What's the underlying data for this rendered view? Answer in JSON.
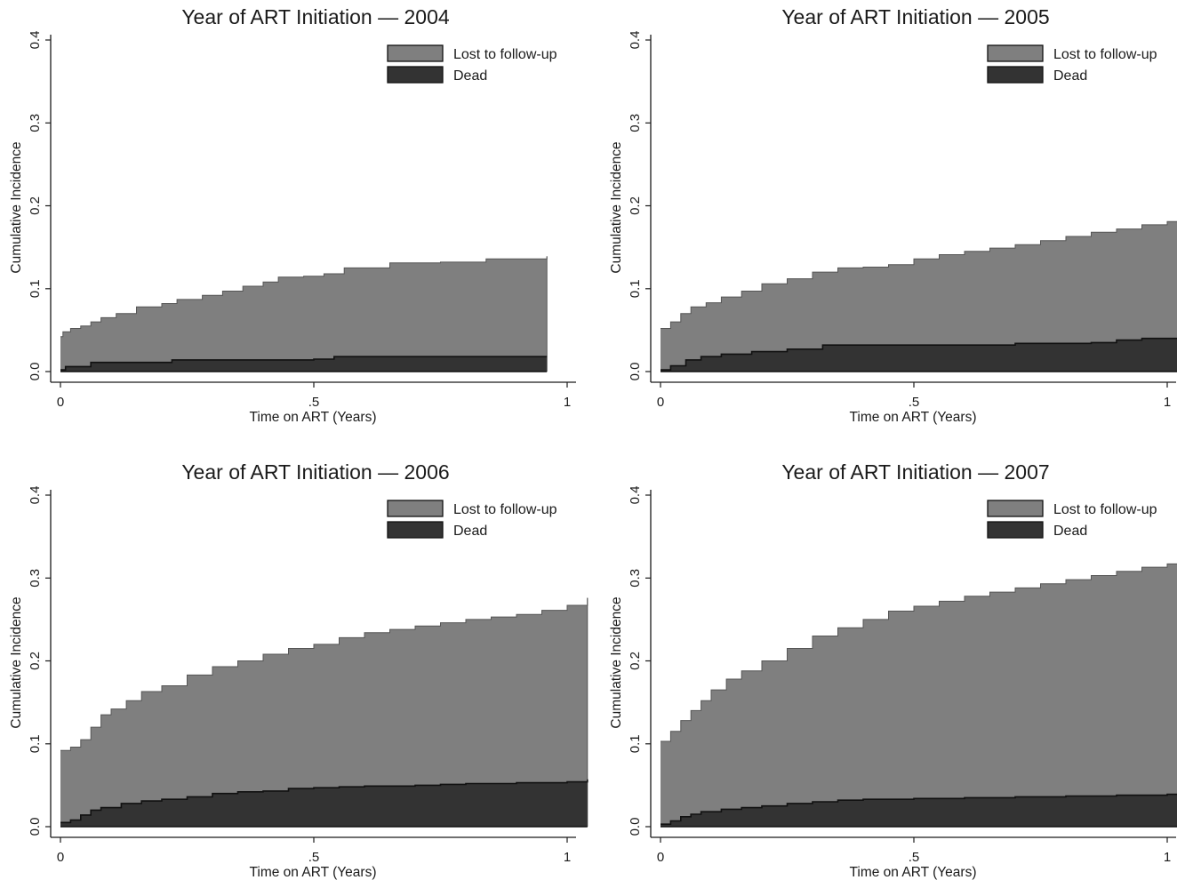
{
  "colors": {
    "ltfu": "#7f7f7f",
    "dead": "#333333",
    "outline": "#111111"
  },
  "chart_data": [
    {
      "type": "area",
      "title": "Year of ART Initiation — 2004",
      "xlabel": "Time on ART (Years)",
      "ylabel": "Cumulative Incidence",
      "xlim": [
        0,
        1
      ],
      "ylim": [
        0,
        0.4
      ],
      "xticks": [
        {
          "v": 0,
          "label": "0"
        },
        {
          "v": 0.5,
          "label": ".5"
        },
        {
          "v": 1,
          "label": "1"
        }
      ],
      "yticks": [
        {
          "v": 0,
          "label": "0.0"
        },
        {
          "v": 0.1,
          "label": "0.1"
        },
        {
          "v": 0.2,
          "label": "0.2"
        },
        {
          "v": 0.3,
          "label": "0.3"
        },
        {
          "v": 0.4,
          "label": "0.4"
        }
      ],
      "legend": [
        {
          "name": "Lost to follow-up",
          "color": "#7f7f7f"
        },
        {
          "name": "Dead",
          "color": "#333333"
        }
      ],
      "legend_position": "top-right",
      "series": [
        {
          "name": "Lost to follow-up",
          "stacked_total": true,
          "x": [
            0,
            0.005,
            0.02,
            0.04,
            0.06,
            0.08,
            0.11,
            0.15,
            0.2,
            0.23,
            0.28,
            0.32,
            0.36,
            0.4,
            0.43,
            0.48,
            0.52,
            0.56,
            0.65,
            0.75,
            0.84,
            0.96
          ],
          "y": [
            0.042,
            0.048,
            0.052,
            0.055,
            0.06,
            0.065,
            0.07,
            0.078,
            0.082,
            0.087,
            0.092,
            0.097,
            0.103,
            0.108,
            0.114,
            0.115,
            0.118,
            0.125,
            0.131,
            0.132,
            0.136,
            0.139
          ]
        },
        {
          "name": "Dead",
          "x": [
            0,
            0.01,
            0.06,
            0.22,
            0.5,
            0.54,
            0.96
          ],
          "y": [
            0.002,
            0.006,
            0.011,
            0.014,
            0.015,
            0.018,
            0.018
          ]
        }
      ]
    },
    {
      "type": "area",
      "title": "Year of ART Initiation — 2005",
      "xlabel": "Time on ART (Years)",
      "ylabel": "Cumulative Incidence",
      "xlim": [
        0,
        1.04
      ],
      "ylim": [
        0,
        0.4
      ],
      "xticks": [
        {
          "v": 0,
          "label": "0"
        },
        {
          "v": 0.5,
          "label": ".5"
        },
        {
          "v": 1,
          "label": "1"
        }
      ],
      "yticks": [
        {
          "v": 0,
          "label": "0.0"
        },
        {
          "v": 0.1,
          "label": "0.1"
        },
        {
          "v": 0.2,
          "label": "0.2"
        },
        {
          "v": 0.3,
          "label": "0.3"
        },
        {
          "v": 0.4,
          "label": "0.4"
        }
      ],
      "legend": [
        {
          "name": "Lost to follow-up",
          "color": "#7f7f7f"
        },
        {
          "name": "Dead",
          "color": "#333333"
        }
      ],
      "legend_position": "top-right",
      "series": [
        {
          "name": "Lost to follow-up",
          "stacked_total": true,
          "x": [
            0,
            0.02,
            0.04,
            0.06,
            0.09,
            0.12,
            0.16,
            0.2,
            0.25,
            0.3,
            0.35,
            0.4,
            0.45,
            0.5,
            0.55,
            0.6,
            0.65,
            0.7,
            0.75,
            0.8,
            0.85,
            0.9,
            0.95,
            1.0,
            1.04
          ],
          "y": [
            0.052,
            0.06,
            0.07,
            0.078,
            0.083,
            0.09,
            0.097,
            0.106,
            0.112,
            0.12,
            0.125,
            0.126,
            0.129,
            0.136,
            0.141,
            0.145,
            0.149,
            0.153,
            0.158,
            0.163,
            0.168,
            0.172,
            0.177,
            0.181,
            0.184
          ]
        },
        {
          "name": "Dead",
          "x": [
            0,
            0.02,
            0.05,
            0.08,
            0.12,
            0.18,
            0.25,
            0.32,
            0.5,
            0.7,
            0.75,
            0.85,
            0.9,
            0.95,
            1.04
          ],
          "y": [
            0.002,
            0.007,
            0.014,
            0.018,
            0.021,
            0.024,
            0.027,
            0.032,
            0.032,
            0.034,
            0.034,
            0.035,
            0.038,
            0.04,
            0.041
          ]
        }
      ]
    },
    {
      "type": "area",
      "title": "Year of ART Initiation — 2006",
      "xlabel": "Time on ART (Years)",
      "ylabel": "Cumulative Incidence",
      "xlim": [
        0,
        1.04
      ],
      "ylim": [
        0,
        0.4
      ],
      "xticks": [
        {
          "v": 0,
          "label": "0"
        },
        {
          "v": 0.5,
          "label": ".5"
        },
        {
          "v": 1,
          "label": "1"
        }
      ],
      "yticks": [
        {
          "v": 0,
          "label": "0.0"
        },
        {
          "v": 0.1,
          "label": "0.1"
        },
        {
          "v": 0.2,
          "label": "0.2"
        },
        {
          "v": 0.3,
          "label": "0.3"
        },
        {
          "v": 0.4,
          "label": "0.4"
        }
      ],
      "legend": [
        {
          "name": "Lost to follow-up",
          "color": "#7f7f7f"
        },
        {
          "name": "Dead",
          "color": "#333333"
        }
      ],
      "legend_position": "top-right",
      "series": [
        {
          "name": "Lost to follow-up",
          "stacked_total": true,
          "x": [
            0,
            0.02,
            0.04,
            0.06,
            0.08,
            0.1,
            0.13,
            0.16,
            0.2,
            0.25,
            0.3,
            0.35,
            0.4,
            0.45,
            0.5,
            0.55,
            0.6,
            0.65,
            0.7,
            0.75,
            0.8,
            0.85,
            0.9,
            0.95,
            1.0,
            1.04
          ],
          "y": [
            0.092,
            0.096,
            0.105,
            0.12,
            0.135,
            0.142,
            0.152,
            0.163,
            0.17,
            0.183,
            0.193,
            0.2,
            0.208,
            0.215,
            0.22,
            0.228,
            0.234,
            0.238,
            0.242,
            0.246,
            0.25,
            0.253,
            0.256,
            0.261,
            0.267,
            0.276
          ]
        },
        {
          "name": "Dead",
          "x": [
            0,
            0.02,
            0.04,
            0.06,
            0.08,
            0.12,
            0.16,
            0.2,
            0.25,
            0.3,
            0.35,
            0.4,
            0.45,
            0.5,
            0.55,
            0.6,
            0.7,
            0.75,
            0.8,
            0.9,
            1.0,
            1.04
          ],
          "y": [
            0.005,
            0.008,
            0.014,
            0.02,
            0.023,
            0.028,
            0.031,
            0.033,
            0.036,
            0.04,
            0.042,
            0.043,
            0.046,
            0.047,
            0.048,
            0.049,
            0.05,
            0.051,
            0.052,
            0.053,
            0.054,
            0.057
          ]
        }
      ]
    },
    {
      "type": "area",
      "title": "Year of ART Initiation — 2007",
      "xlabel": "Time on ART (Years)",
      "ylabel": "Cumulative Incidence",
      "xlim": [
        0,
        1.04
      ],
      "ylim": [
        0,
        0.4
      ],
      "xticks": [
        {
          "v": 0,
          "label": "0"
        },
        {
          "v": 0.5,
          "label": ".5"
        },
        {
          "v": 1,
          "label": "1"
        }
      ],
      "yticks": [
        {
          "v": 0,
          "label": "0.0"
        },
        {
          "v": 0.1,
          "label": "0.1"
        },
        {
          "v": 0.2,
          "label": "0.2"
        },
        {
          "v": 0.3,
          "label": "0.3"
        },
        {
          "v": 0.4,
          "label": "0.4"
        }
      ],
      "legend": [
        {
          "name": "Lost to follow-up",
          "color": "#7f7f7f"
        },
        {
          "name": "Dead",
          "color": "#333333"
        }
      ],
      "legend_position": "top-right",
      "series": [
        {
          "name": "Lost to follow-up",
          "stacked_total": true,
          "x": [
            0,
            0.02,
            0.04,
            0.06,
            0.08,
            0.1,
            0.13,
            0.16,
            0.2,
            0.25,
            0.3,
            0.35,
            0.4,
            0.45,
            0.5,
            0.55,
            0.6,
            0.65,
            0.7,
            0.75,
            0.8,
            0.85,
            0.9,
            0.95,
            1.0,
            1.04
          ],
          "y": [
            0.103,
            0.115,
            0.128,
            0.14,
            0.152,
            0.165,
            0.178,
            0.188,
            0.2,
            0.215,
            0.23,
            0.24,
            0.25,
            0.26,
            0.266,
            0.272,
            0.278,
            0.283,
            0.288,
            0.293,
            0.298,
            0.303,
            0.308,
            0.313,
            0.317,
            0.321
          ]
        },
        {
          "name": "Dead",
          "x": [
            0,
            0.02,
            0.04,
            0.06,
            0.08,
            0.12,
            0.16,
            0.2,
            0.25,
            0.3,
            0.35,
            0.4,
            0.5,
            0.6,
            0.7,
            0.8,
            0.9,
            1.0,
            1.04
          ],
          "y": [
            0.003,
            0.007,
            0.012,
            0.015,
            0.018,
            0.021,
            0.023,
            0.025,
            0.028,
            0.03,
            0.032,
            0.033,
            0.034,
            0.035,
            0.036,
            0.037,
            0.038,
            0.039,
            0.04
          ]
        }
      ]
    }
  ]
}
